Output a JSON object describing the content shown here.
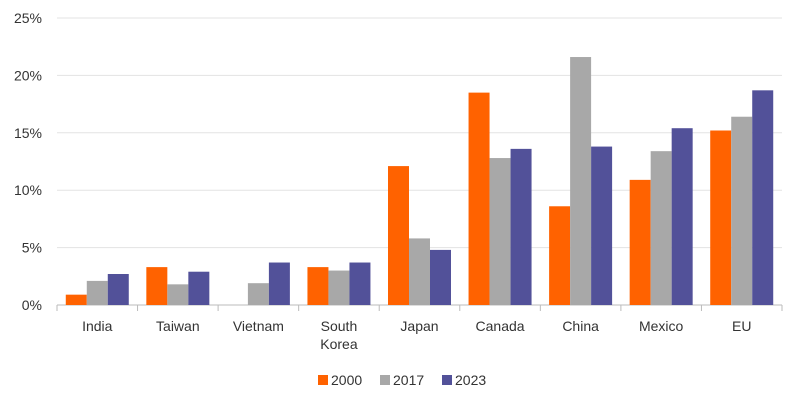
{
  "chart_data": {
    "type": "bar",
    "categories": [
      "India",
      "Taiwan",
      "Vietnam",
      "South Korea",
      "Japan",
      "Canada",
      "China",
      "Mexico",
      "EU"
    ],
    "series": [
      {
        "name": "2000",
        "color": "#FF6200",
        "values": [
          0.9,
          3.3,
          0,
          3.3,
          12.1,
          18.5,
          8.6,
          10.9,
          15.2
        ]
      },
      {
        "name": "2017",
        "color": "#A8A8A8",
        "values": [
          2.1,
          1.8,
          1.9,
          3.0,
          5.8,
          12.8,
          21.6,
          13.4,
          16.4
        ]
      },
      {
        "name": "2023",
        "color": "#525199",
        "values": [
          2.7,
          2.9,
          3.7,
          3.7,
          4.8,
          13.6,
          13.8,
          15.4,
          18.7
        ]
      }
    ],
    "ylim": [
      0,
      25
    ],
    "yticks": [
      "0%",
      "5%",
      "10%",
      "15%",
      "20%",
      "25%"
    ],
    "grid": true,
    "legend": "bottom"
  }
}
